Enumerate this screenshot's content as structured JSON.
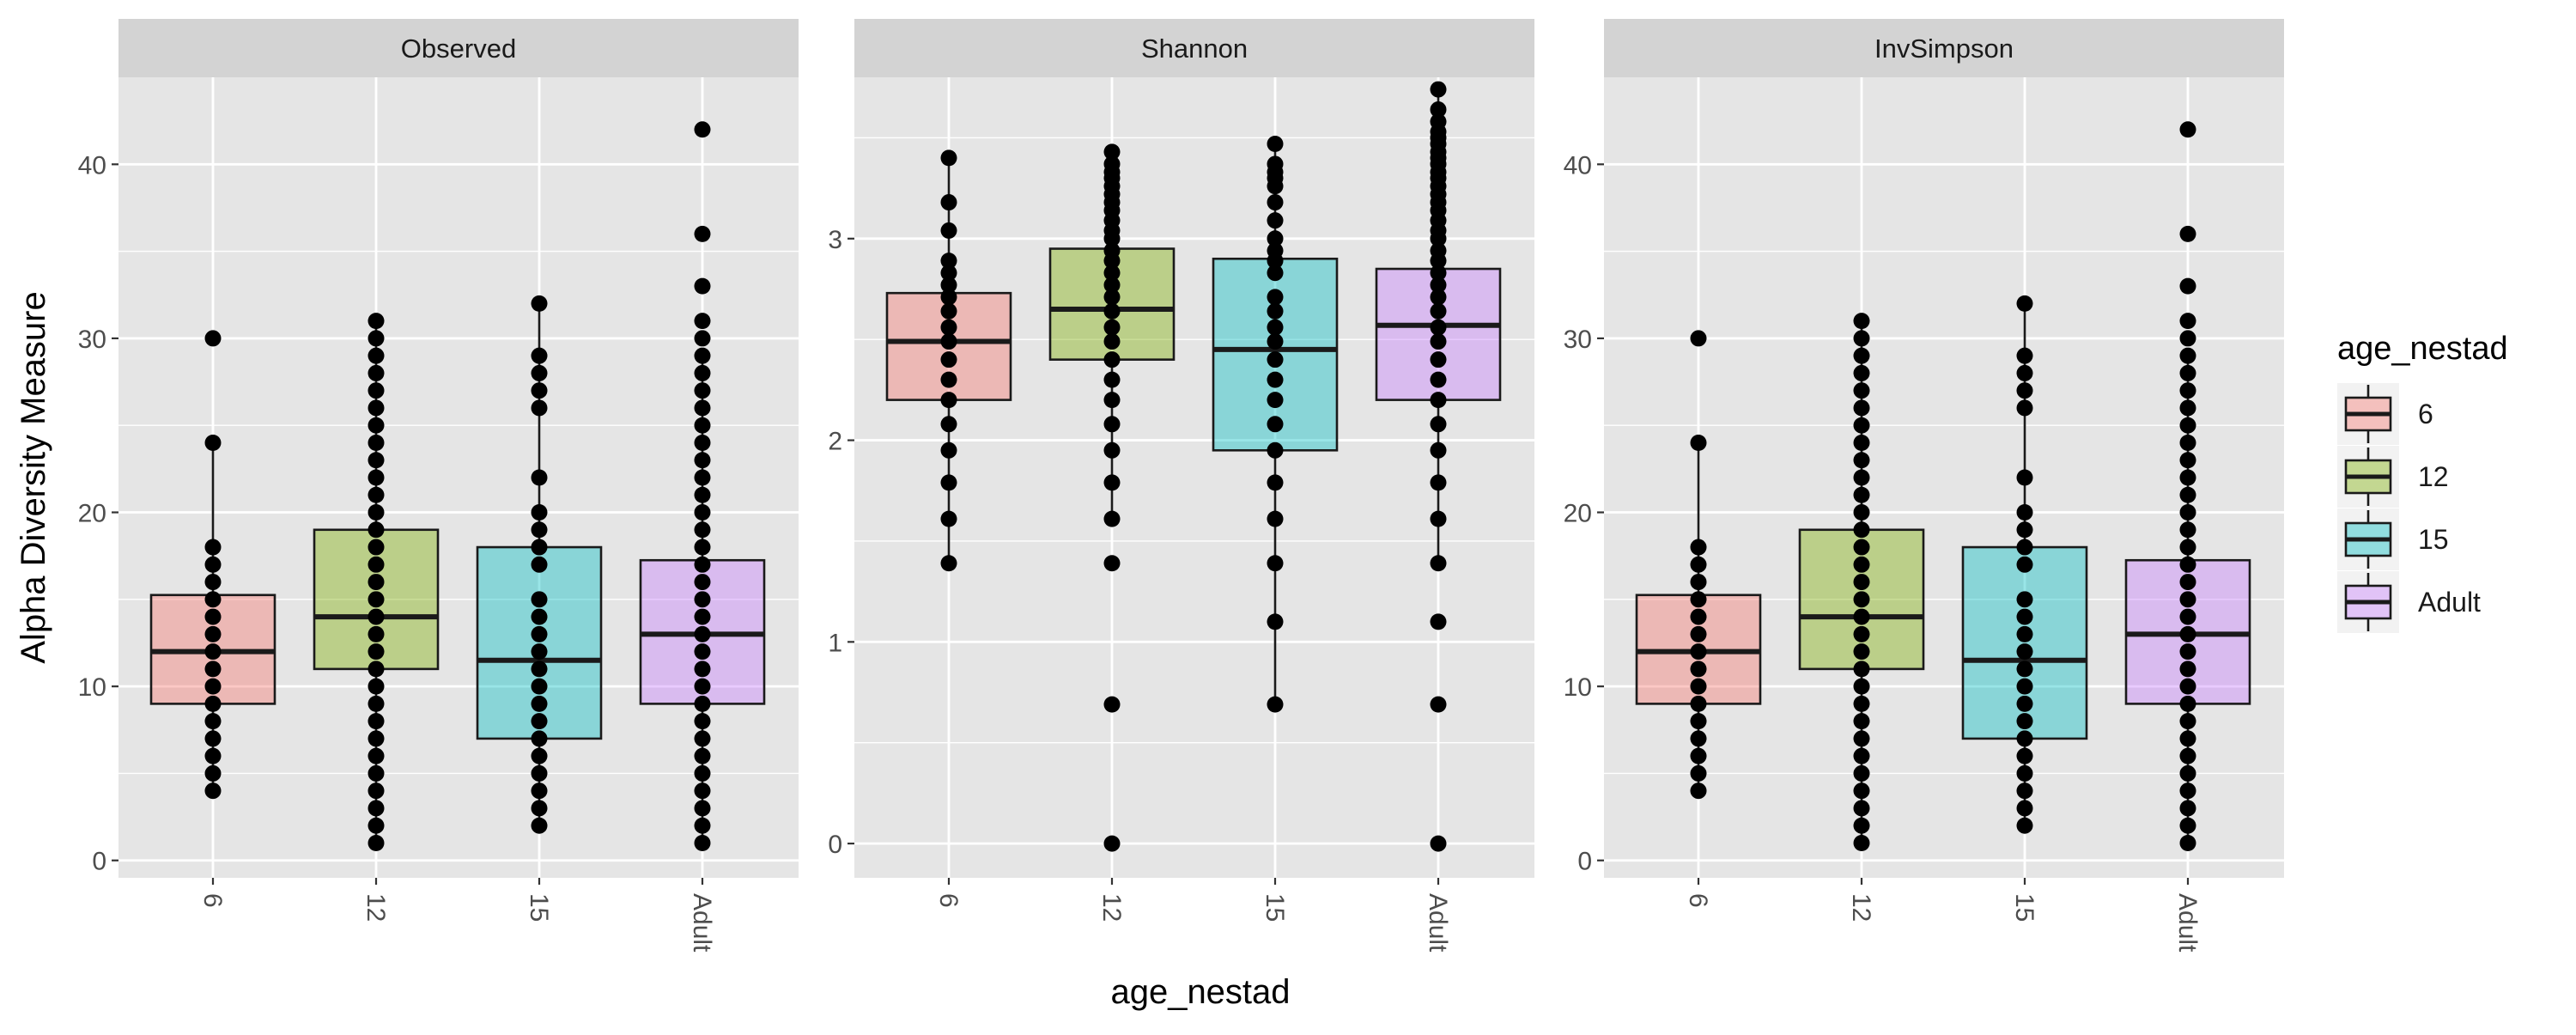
{
  "colors": {
    "panel_bg": "#e5e5e5",
    "strip_bg": "#d3d3d3",
    "grid": "#ffffff",
    "text": "#1a1a1a",
    "tick_text": "#4d4d4d",
    "point": "#000000"
  },
  "chart_data": {
    "type": "boxplot",
    "ylabel": "Alpha Diversity Measure",
    "xlabel": "age_nestad",
    "categories": [
      "6",
      "12",
      "15",
      "Adult"
    ],
    "legend": {
      "title": "age_nestad",
      "position": "right",
      "entries": [
        {
          "label": "6",
          "color": "#F8766D"
        },
        {
          "label": "12",
          "color": "#7CAE00"
        },
        {
          "label": "15",
          "color": "#00BFC4"
        },
        {
          "label": "Adult",
          "color": "#C77CFF"
        }
      ]
    },
    "grid": true,
    "panels": [
      {
        "title": "Observed",
        "ylim": [
          -1,
          45
        ],
        "yticks": [
          0,
          10,
          20,
          30,
          40
        ],
        "boxes": [
          {
            "category": "6",
            "q1": 9,
            "median": 12,
            "q3": 15.25,
            "whisker_low": 4,
            "whisker_high": 24
          },
          {
            "category": "12",
            "q1": 11,
            "median": 14,
            "q3": 19,
            "whisker_low": 1,
            "whisker_high": 31
          },
          {
            "category": "15",
            "q1": 7,
            "median": 11.5,
            "q3": 18,
            "whisker_low": 2,
            "whisker_high": 32
          },
          {
            "category": "Adult",
            "q1": 9,
            "median": 13,
            "q3": 17.25,
            "whisker_low": 1,
            "whisker_high": 29
          }
        ],
        "points": [
          [
            4,
            5,
            6,
            7,
            8,
            9,
            10,
            11,
            12,
            13,
            14,
            15,
            16,
            17,
            18,
            24,
            30
          ],
          [
            1,
            2,
            3,
            4,
            5,
            6,
            7,
            8,
            9,
            10,
            11,
            12,
            13,
            14,
            15,
            16,
            17,
            18,
            19,
            20,
            21,
            22,
            23,
            24,
            25,
            26,
            27,
            28,
            29,
            30,
            31
          ],
          [
            2,
            3,
            4,
            5,
            6,
            7,
            8,
            9,
            10,
            11,
            12,
            13,
            14,
            15,
            17,
            18,
            19,
            20,
            22,
            26,
            27,
            28,
            29,
            32
          ],
          [
            1,
            2,
            3,
            4,
            5,
            6,
            7,
            8,
            9,
            10,
            11,
            12,
            13,
            14,
            15,
            16,
            17,
            18,
            19,
            20,
            21,
            22,
            23,
            24,
            25,
            26,
            27,
            28,
            29,
            30,
            31,
            33,
            36,
            42
          ]
        ]
      },
      {
        "title": "Shannon",
        "ylim": [
          -0.17,
          3.8
        ],
        "yticks": [
          0,
          1,
          2,
          3
        ],
        "boxes": [
          {
            "category": "6",
            "q1": 2.2,
            "median": 2.49,
            "q3": 2.73,
            "whisker_low": 1.39,
            "whisker_high": 3.4
          },
          {
            "category": "12",
            "q1": 2.4,
            "median": 2.65,
            "q3": 2.95,
            "whisker_low": 1.61,
            "whisker_high": 3.43
          },
          {
            "category": "15",
            "q1": 1.95,
            "median": 2.45,
            "q3": 2.9,
            "whisker_low": 0.69,
            "whisker_high": 3.47
          },
          {
            "category": "Adult",
            "q1": 2.2,
            "median": 2.57,
            "q3": 2.85,
            "whisker_low": 1.39,
            "whisker_high": 3.74
          }
        ],
        "points": [
          [
            1.39,
            1.61,
            1.79,
            1.95,
            2.08,
            2.2,
            2.3,
            2.4,
            2.49,
            2.56,
            2.64,
            2.71,
            2.77,
            2.83,
            2.89,
            3.04,
            3.18,
            3.4
          ],
          [
            0,
            0.69,
            1.39,
            1.61,
            1.79,
            1.95,
            2.08,
            2.2,
            2.3,
            2.4,
            2.49,
            2.56,
            2.64,
            2.71,
            2.77,
            2.83,
            2.89,
            2.94,
            3.0,
            3.04,
            3.09,
            3.14,
            3.18,
            3.22,
            3.26,
            3.3,
            3.33,
            3.37,
            3.43
          ],
          [
            0.69,
            1.1,
            1.39,
            1.61,
            1.79,
            1.95,
            2.08,
            2.2,
            2.3,
            2.4,
            2.49,
            2.56,
            2.64,
            2.71,
            2.83,
            2.89,
            2.94,
            3.0,
            3.09,
            3.18,
            3.26,
            3.3,
            3.33,
            3.37,
            3.47
          ],
          [
            0,
            0.69,
            1.1,
            1.39,
            1.61,
            1.79,
            1.95,
            2.08,
            2.2,
            2.3,
            2.4,
            2.49,
            2.56,
            2.64,
            2.71,
            2.77,
            2.83,
            2.89,
            2.94,
            3.0,
            3.04,
            3.09,
            3.14,
            3.18,
            3.22,
            3.26,
            3.3,
            3.33,
            3.37,
            3.4,
            3.43,
            3.47,
            3.5,
            3.53,
            3.58,
            3.64,
            3.74
          ]
        ]
      },
      {
        "title": "InvSimpson",
        "ylim": [
          -1,
          45
        ],
        "yticks": [
          0,
          10,
          20,
          30,
          40
        ],
        "boxes": [
          {
            "category": "6",
            "q1": 9,
            "median": 12,
            "q3": 15.25,
            "whisker_low": 4,
            "whisker_high": 24
          },
          {
            "category": "12",
            "q1": 11,
            "median": 14,
            "q3": 19,
            "whisker_low": 1,
            "whisker_high": 31
          },
          {
            "category": "15",
            "q1": 7,
            "median": 11.5,
            "q3": 18,
            "whisker_low": 2,
            "whisker_high": 32
          },
          {
            "category": "Adult",
            "q1": 9,
            "median": 13,
            "q3": 17.25,
            "whisker_low": 1,
            "whisker_high": 29
          }
        ],
        "points": [
          [
            4,
            5,
            6,
            7,
            8,
            9,
            10,
            11,
            12,
            13,
            14,
            15,
            16,
            17,
            18,
            24,
            30
          ],
          [
            1,
            2,
            3,
            4,
            5,
            6,
            7,
            8,
            9,
            10,
            11,
            12,
            13,
            14,
            15,
            16,
            17,
            18,
            19,
            20,
            21,
            22,
            23,
            24,
            25,
            26,
            27,
            28,
            29,
            30,
            31
          ],
          [
            2,
            3,
            4,
            5,
            6,
            7,
            8,
            9,
            10,
            11,
            12,
            13,
            14,
            15,
            17,
            18,
            19,
            20,
            22,
            26,
            27,
            28,
            29,
            32
          ],
          [
            1,
            2,
            3,
            4,
            5,
            6,
            7,
            8,
            9,
            10,
            11,
            12,
            13,
            14,
            15,
            16,
            17,
            18,
            19,
            20,
            21,
            22,
            23,
            24,
            25,
            26,
            27,
            28,
            29,
            30,
            31,
            33,
            36,
            42
          ]
        ]
      }
    ]
  }
}
